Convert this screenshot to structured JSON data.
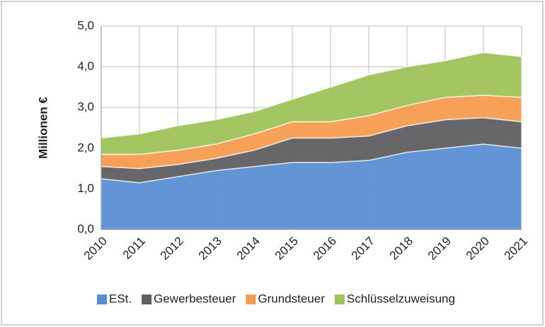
{
  "chart_data": {
    "type": "stacked_area",
    "ylabel": "Millionen €",
    "categories": [
      "2010",
      "2011",
      "2012",
      "2013",
      "2014",
      "2015",
      "2016",
      "2017",
      "2018",
      "2019",
      "2020",
      "2021"
    ],
    "series": [
      {
        "name": "ESt.",
        "color": "#5b8fd4",
        "values": [
          1.25,
          1.15,
          1.3,
          1.45,
          1.55,
          1.65,
          1.65,
          1.7,
          1.9,
          2.0,
          2.1,
          2.0
        ]
      },
      {
        "name": "Gewerbesteuer",
        "color": "#5f5f62",
        "values": [
          0.3,
          0.35,
          0.3,
          0.3,
          0.4,
          0.6,
          0.6,
          0.6,
          0.65,
          0.7,
          0.65,
          0.65
        ]
      },
      {
        "name": "Grundsteuer",
        "color": "#f59c4e",
        "values": [
          0.3,
          0.35,
          0.35,
          0.35,
          0.4,
          0.4,
          0.4,
          0.5,
          0.5,
          0.55,
          0.55,
          0.6
        ]
      },
      {
        "name": "Schlüsselzuweisung",
        "color": "#9ec35a",
        "values": [
          0.4,
          0.5,
          0.6,
          0.6,
          0.55,
          0.55,
          0.85,
          1.0,
          0.95,
          0.9,
          1.05,
          1.0
        ]
      }
    ],
    "ylim": [
      0,
      5
    ],
    "yticks": [
      {
        "value": 0,
        "label": "0,0"
      },
      {
        "value": 1,
        "label": "1,0"
      },
      {
        "value": 2,
        "label": "2,0"
      },
      {
        "value": 3,
        "label": "3,0"
      },
      {
        "value": 4,
        "label": "4,0"
      },
      {
        "value": 5,
        "label": "5,0"
      }
    ],
    "grid": true,
    "legend": "bottom"
  }
}
